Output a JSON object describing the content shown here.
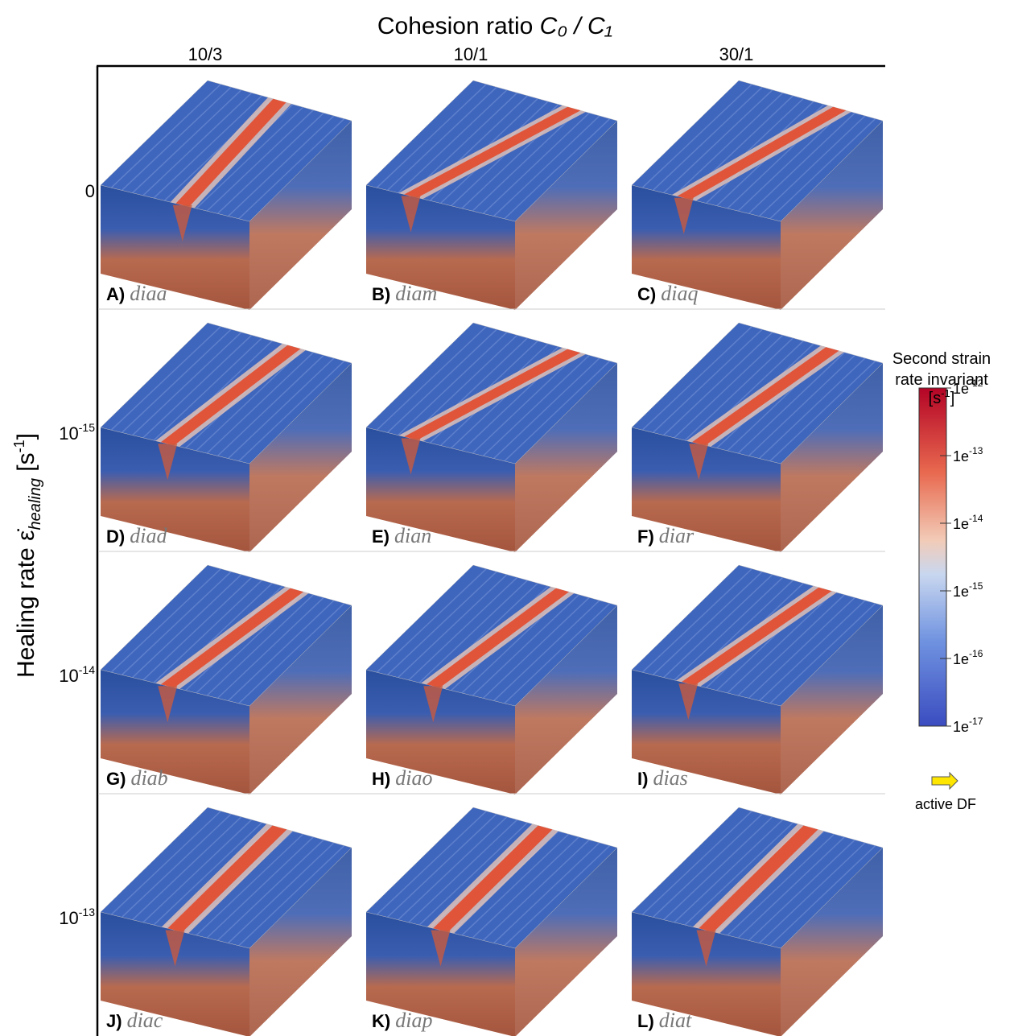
{
  "header": {
    "title": "Cohesion ratio",
    "title_symbol": "C₀ / C₁",
    "columns": [
      "10/3",
      "10/1",
      "30/1"
    ]
  },
  "y_axis": {
    "label": "Healing rate",
    "symbol": "ε̇",
    "subscript": "healing",
    "unit": "[s",
    "unit_exp": "-1",
    "unit_close": "]",
    "rows": [
      {
        "base": "0",
        "exp": ""
      },
      {
        "base": "10",
        "exp": "-15"
      },
      {
        "base": "10",
        "exp": "-14"
      },
      {
        "base": "10",
        "exp": "-13"
      }
    ]
  },
  "panels": [
    {
      "letter": "A)",
      "name": "diaa"
    },
    {
      "letter": "B)",
      "name": "diam"
    },
    {
      "letter": "C)",
      "name": "diaq"
    },
    {
      "letter": "D)",
      "name": "diad"
    },
    {
      "letter": "E)",
      "name": "dian"
    },
    {
      "letter": "F)",
      "name": "diar"
    },
    {
      "letter": "G)",
      "name": "diab"
    },
    {
      "letter": "H)",
      "name": "diao"
    },
    {
      "letter": "I)",
      "name": "dias"
    },
    {
      "letter": "J)",
      "name": "diac"
    },
    {
      "letter": "K)",
      "name": "diap"
    },
    {
      "letter": "L)",
      "name": "diat"
    }
  ],
  "colorbar": {
    "title": [
      "Second strain",
      "rate invariant"
    ],
    "unit": "[s",
    "unit_exp": "-1",
    "unit_close": "]",
    "ticks": [
      {
        "base": "1e",
        "exp": "-12"
      },
      {
        "base": "1e",
        "exp": "-13"
      },
      {
        "base": "1e",
        "exp": "-14"
      },
      {
        "base": "1e",
        "exp": "-15"
      },
      {
        "base": "1e",
        "exp": "-16"
      },
      {
        "base": "1e",
        "exp": "-17"
      }
    ]
  },
  "legend": {
    "label": "active DF"
  }
}
